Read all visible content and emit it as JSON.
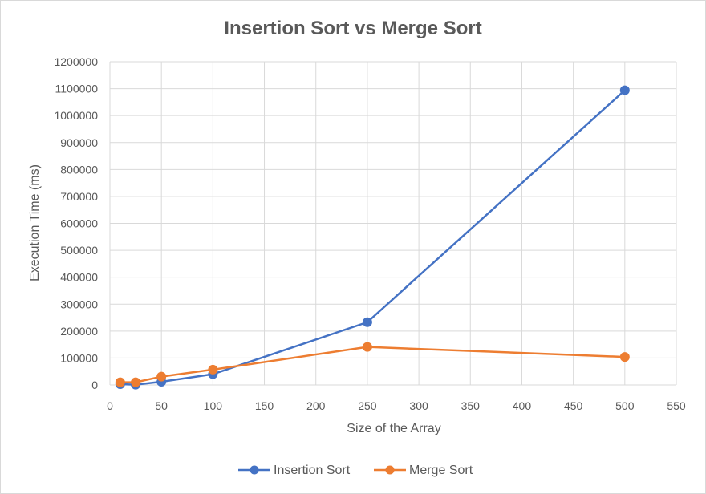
{
  "chart_data": {
    "type": "line",
    "title": "Insertion Sort vs Merge Sort",
    "xlabel": "Size of the Array",
    "ylabel": "Execution Time (ms)",
    "xlim": [
      0,
      550
    ],
    "ylim": [
      0,
      1200000
    ],
    "x_ticks": [
      0,
      50,
      100,
      150,
      200,
      250,
      300,
      350,
      400,
      450,
      500,
      550
    ],
    "y_ticks": [
      0,
      100000,
      200000,
      300000,
      400000,
      500000,
      600000,
      700000,
      800000,
      900000,
      1000000,
      1100000,
      1200000
    ],
    "grid": true,
    "legend_position": "bottom",
    "series": [
      {
        "name": "Insertion Sort",
        "color": "#4472c4",
        "x": [
          10,
          25,
          50,
          100,
          250,
          500
        ],
        "y": [
          3000,
          1000,
          12000,
          40000,
          233000,
          1094000
        ]
      },
      {
        "name": "Merge Sort",
        "color": "#ed7d31",
        "x": [
          10,
          25,
          50,
          100,
          250,
          500
        ],
        "y": [
          10000,
          10000,
          31000,
          57000,
          141000,
          104000
        ]
      }
    ]
  }
}
